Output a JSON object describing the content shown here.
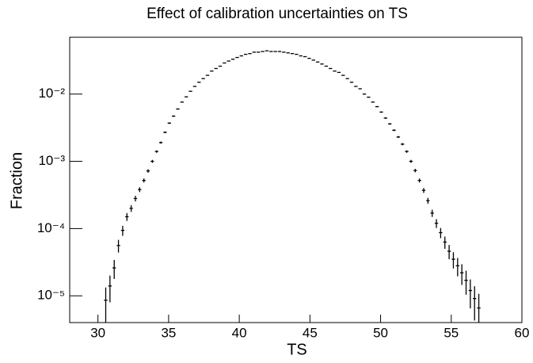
{
  "chart_data": {
    "type": "histogram",
    "title": "Effect of calibration uncertainties on TS",
    "x_label": "TS",
    "y_label": "Fraction",
    "ylog": true,
    "color": "#000000",
    "xlim": [
      28,
      60
    ],
    "xticks": [
      30,
      35,
      40,
      45,
      50,
      55,
      60
    ],
    "ylim": [
      4e-06,
      0.07
    ],
    "yticks": [
      {
        "value": 1e-05,
        "label": "10⁻⁵"
      },
      {
        "value": 0.0001,
        "label": "10⁻⁴"
      },
      {
        "value": 0.001,
        "label": "10⁻³"
      },
      {
        "value": 0.01,
        "label": "10⁻²"
      }
    ],
    "bins": [
      30.4,
      30.7,
      31,
      31.3,
      31.6,
      31.9,
      32.2,
      32.5,
      32.8,
      33.1,
      33.4,
      33.7,
      34,
      34.3,
      34.6,
      34.9,
      35.2,
      35.5,
      35.8,
      36.1,
      36.4,
      36.7,
      37,
      37.3,
      37.6,
      37.9,
      38.2,
      38.5,
      38.8,
      39.1,
      39.4,
      39.7,
      40,
      40.3,
      40.6,
      40.9,
      41.2,
      41.5,
      41.8,
      42.1,
      42.4,
      42.7,
      43,
      43.3,
      43.6,
      43.9,
      44.2,
      44.5,
      44.8,
      45.1,
      45.4,
      45.7,
      46,
      46.3,
      46.6,
      46.9,
      47.2,
      47.5,
      47.8,
      48.1,
      48.4,
      48.7,
      49,
      49.3,
      49.6,
      49.9,
      50.2,
      50.5,
      50.8,
      51.1,
      51.4,
      51.7,
      52,
      52.3,
      52.6,
      52.9,
      53.2,
      53.5,
      53.8,
      54.1,
      54.4,
      54.7,
      55,
      55.3,
      55.6,
      55.9,
      56.2,
      56.5,
      56.8,
      57.1
    ],
    "values": [
      8.6e-06,
      1.4e-05,
      2.6e-05,
      5.6e-05,
      9.4e-05,
      0.00015,
      0.0002,
      0.00028,
      0.00038,
      0.00052,
      0.00072,
      0.001,
      0.0014,
      0.0019,
      0.0027,
      0.0037,
      0.0047,
      0.006,
      0.0076,
      0.0091,
      0.011,
      0.013,
      0.015,
      0.017,
      0.019,
      0.022,
      0.024,
      0.026,
      0.029,
      0.031,
      0.033,
      0.035,
      0.037,
      0.039,
      0.04,
      0.042,
      0.042,
      0.043,
      0.044,
      0.043,
      0.043,
      0.043,
      0.042,
      0.041,
      0.04,
      0.039,
      0.037,
      0.036,
      0.034,
      0.032,
      0.03,
      0.028,
      0.026,
      0.024,
      0.022,
      0.021,
      0.019,
      0.017,
      0.015,
      0.013,
      0.012,
      0.01,
      0.009,
      0.0076,
      0.0065,
      0.0054,
      0.0044,
      0.0036,
      0.0029,
      0.0023,
      0.0018,
      0.0014,
      0.001,
      0.00073,
      0.00052,
      0.00037,
      0.00026,
      0.00017,
      0.00012,
      8.7e-05,
      6.3e-05,
      4.6e-05,
      3.5e-05,
      2.8e-05,
      2.2e-05,
      1.7e-05,
      1.2e-05,
      9.1e-06,
      6.6e-06
    ],
    "errors": [
      4.7e-06,
      6e-06,
      8.2e-06,
      1.2e-05,
      1.6e-05,
      2e-05,
      2.3e-05,
      2.7e-05,
      3.1e-05,
      3.6e-05,
      4.3e-05,
      5.1e-05,
      6e-05,
      7e-05,
      8.3e-05,
      9.7e-05,
      0.00011,
      0.00012,
      0.00014,
      0.00015,
      0.00017,
      0.00018,
      0.0002,
      0.00021,
      0.00022,
      0.00024,
      0.00025,
      0.00026,
      0.00027,
      0.00028,
      0.00029,
      0.0003,
      0.00031,
      0.00032,
      0.00032,
      0.00033,
      0.00033,
      0.00033,
      0.00034,
      0.00033,
      0.00033,
      0.00033,
      0.00033,
      0.00032,
      0.00032,
      0.00032,
      0.00031,
      0.0003,
      0.00029,
      0.00029,
      0.00028,
      0.00027,
      0.00026,
      0.00025,
      0.00024,
      0.00023,
      0.00022,
      0.00021,
      0.0002,
      0.00018,
      0.00018,
      0.00016,
      0.00015,
      0.00014,
      0.00013,
      0.00012,
      0.00011,
      9.6e-05,
      8.6e-05,
      7.7e-05,
      6.8e-05,
      6e-05,
      5.1e-05,
      4.3e-05,
      3.6e-05,
      3.1e-05,
      2.6e-05,
      2.1e-05,
      1.8e-05,
      1.5e-05,
      1.3e-05,
      1.1e-05,
      9.5e-06,
      8.5e-06,
      7.5e-06,
      6.6e-06,
      5.5e-06,
      4.8e-06,
      4.1e-06
    ]
  }
}
